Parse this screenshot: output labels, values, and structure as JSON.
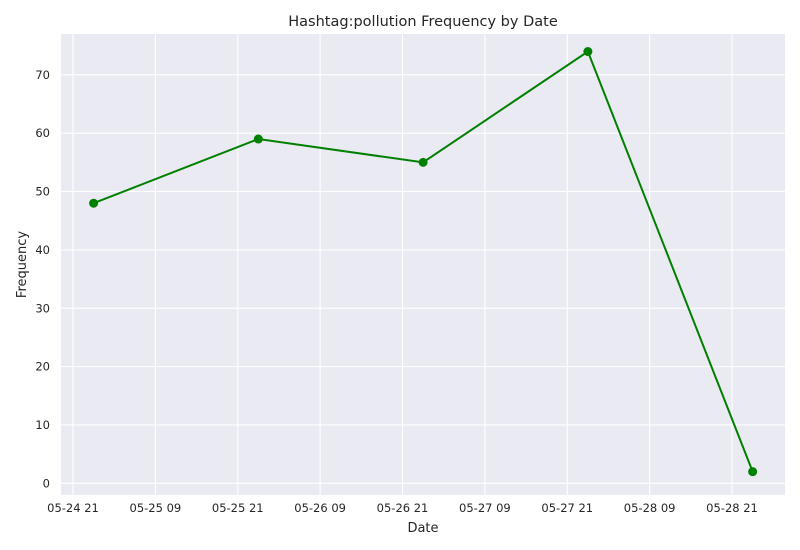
{
  "chart_data": {
    "type": "line",
    "title": "Hashtag:pollution Frequency by Date",
    "xlabel": "Date",
    "ylabel": "Frequency",
    "x_ticks": [
      {
        "label": "05-24 21",
        "hours": 0
      },
      {
        "label": "05-25 09",
        "hours": 12
      },
      {
        "label": "05-25 21",
        "hours": 24
      },
      {
        "label": "05-26 09",
        "hours": 36
      },
      {
        "label": "05-26 21",
        "hours": 48
      },
      {
        "label": "05-27 09",
        "hours": 60
      },
      {
        "label": "05-27 21",
        "hours": 72
      },
      {
        "label": "05-28 09",
        "hours": 84
      },
      {
        "label": "05-28 21",
        "hours": 96
      }
    ],
    "y_ticks": [
      0,
      10,
      20,
      30,
      40,
      50,
      60,
      70
    ],
    "ylim": [
      -2,
      77
    ],
    "grid": true,
    "color": "#008000",
    "background": "#eaeaf2",
    "series": [
      {
        "x": [
          "05-25 00",
          "05-26 00",
          "05-27 00",
          "05-28 00",
          "05-29 00"
        ],
        "values": [
          48,
          59,
          55,
          74,
          2
        ]
      }
    ]
  }
}
